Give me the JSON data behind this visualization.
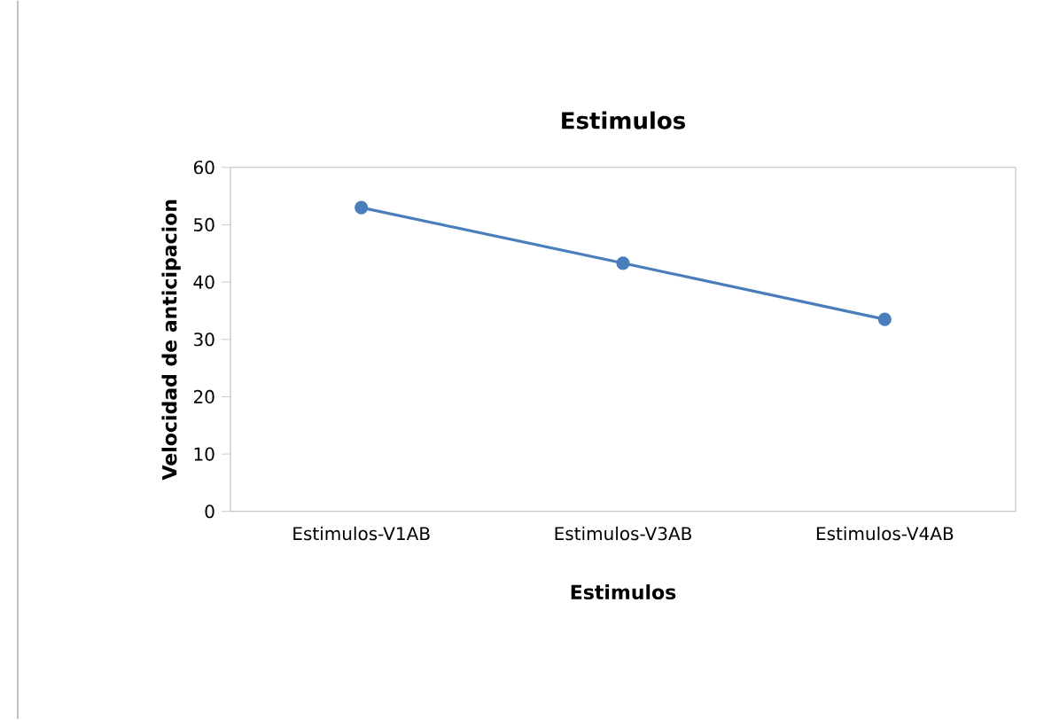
{
  "chart_data": {
    "type": "line",
    "title": "Estimulos",
    "xlabel": "Estimulos",
    "ylabel": "Velocidad de anticipacion",
    "categories": [
      "Estimulos-V1AB",
      "Estimulos-V3AB",
      "Estimulos-V4AB"
    ],
    "series": [
      {
        "color": "#4a7ebb",
        "values": [
          53,
          43.3,
          33.5
        ]
      }
    ],
    "ylim": [
      0,
      60
    ],
    "yticks": [
      0,
      10,
      20,
      30,
      40,
      50,
      60
    ],
    "marker": "circle",
    "line_style": "solid"
  }
}
